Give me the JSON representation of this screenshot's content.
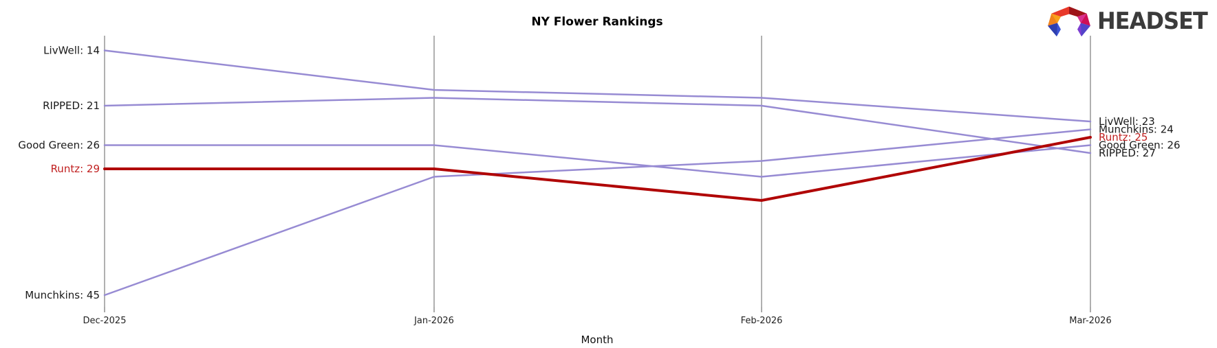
{
  "title": "NY Flower Rankings",
  "xlabel": "Month",
  "logo": {
    "text": "HEADSET"
  },
  "colors": {
    "line_default": "#978bd3",
    "line_highlight": "#b00404",
    "label_default": "#1a1a1a",
    "label_highlight": "#c01f1f",
    "axis": "#b0b0b0",
    "tick_label": "#222222"
  },
  "chart_data": {
    "type": "line",
    "subtype": "bump-ranking",
    "x": [
      "Dec-2025",
      "Jan-2026",
      "Feb-2026",
      "Mar-2026"
    ],
    "y_meaning": "rank (lower number = higher position, y-axis inverted)",
    "ylim": [
      14,
      45
    ],
    "grid": "vertical month axes only",
    "legend": "none",
    "series": [
      {
        "name": "LivWell",
        "values": [
          14,
          19,
          20,
          23
        ],
        "highlight": false,
        "start_label": "LivWell: 14",
        "end_label": "LivWell: 23"
      },
      {
        "name": "RIPPED",
        "values": [
          21,
          20,
          21,
          27
        ],
        "highlight": false,
        "start_label": "RIPPED: 21",
        "end_label": "RIPPED: 27"
      },
      {
        "name": "Good Green",
        "values": [
          26,
          26,
          30,
          26
        ],
        "highlight": false,
        "start_label": "Good Green: 26",
        "end_label": "Good Green: 26"
      },
      {
        "name": "Runtz",
        "values": [
          29,
          29,
          33,
          25
        ],
        "highlight": true,
        "start_label": "Runtz: 29",
        "end_label": "Runtz: 25"
      },
      {
        "name": "Munchkins",
        "values": [
          45,
          30,
          28,
          24
        ],
        "highlight": false,
        "start_label": "Munchkins: 45",
        "end_label": "Munchkins: 24"
      }
    ]
  }
}
